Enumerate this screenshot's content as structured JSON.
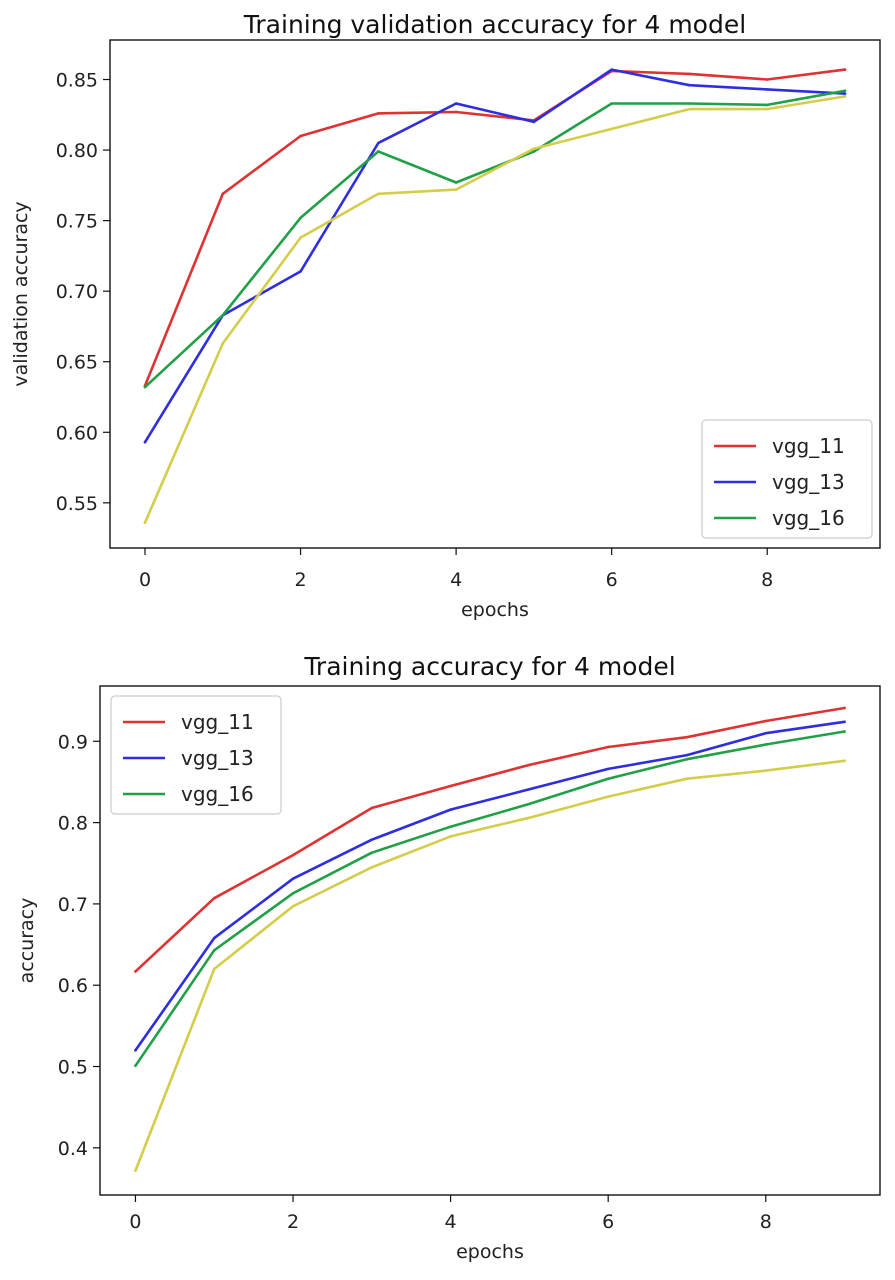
{
  "chart_data": [
    {
      "type": "line",
      "title": "Training validation accuracy for 4 model",
      "xlabel": "epochs",
      "ylabel": "validation accuracy",
      "xlim": [
        -0.45,
        9.45
      ],
      "ylim": [
        0.518,
        0.878
      ],
      "xticks": [
        0,
        2,
        4,
        6,
        8
      ],
      "yticks": [
        0.55,
        0.6,
        0.65,
        0.7,
        0.75,
        0.8,
        0.85
      ],
      "xtick_labels": [
        "0",
        "2",
        "4",
        "6",
        "8"
      ],
      "ytick_labels": [
        "0.55",
        "0.60",
        "0.65",
        "0.70",
        "0.75",
        "0.80",
        "0.85"
      ],
      "legend": "bottom-right",
      "grid": false,
      "x": [
        0,
        1,
        2,
        3,
        4,
        5,
        6,
        7,
        8,
        9
      ],
      "series": [
        {
          "name": "vgg_11",
          "color": "#e03232",
          "values": [
            0.633,
            0.769,
            0.81,
            0.826,
            0.827,
            0.821,
            0.856,
            0.854,
            0.85,
            0.857
          ]
        },
        {
          "name": "vgg_13",
          "color": "#2e2ee0",
          "values": [
            0.593,
            0.683,
            0.714,
            0.805,
            0.833,
            0.82,
            0.857,
            0.846,
            0.843,
            0.84
          ]
        },
        {
          "name": "vgg_16",
          "color": "#21a047",
          "values": [
            0.632,
            0.683,
            0.752,
            0.799,
            0.777,
            0.799,
            0.833,
            0.833,
            0.832,
            0.842
          ]
        },
        {
          "color": "#d4cd4a",
          "values": [
            0.536,
            0.663,
            0.738,
            0.769,
            0.772,
            0.801,
            0.815,
            0.829,
            0.829,
            0.838
          ]
        }
      ]
    },
    {
      "type": "line",
      "title": "Training accuracy for 4 model",
      "xlabel": "epochs",
      "ylabel": "accuracy",
      "xlim": [
        -0.45,
        9.45
      ],
      "ylim": [
        0.342,
        0.968
      ],
      "xticks": [
        0,
        2,
        4,
        6,
        8
      ],
      "yticks": [
        0.4,
        0.5,
        0.6,
        0.7,
        0.8,
        0.9
      ],
      "xtick_labels": [
        "0",
        "2",
        "4",
        "6",
        "8"
      ],
      "ytick_labels": [
        "0.4",
        "0.5",
        "0.6",
        "0.7",
        "0.8",
        "0.9"
      ],
      "legend": "top-left",
      "grid": false,
      "x": [
        0,
        1,
        2,
        3,
        4,
        5,
        6,
        7,
        8,
        9
      ],
      "series": [
        {
          "name": "vgg_11",
          "color": "#e03232",
          "values": [
            0.617,
            0.707,
            0.76,
            0.818,
            0.845,
            0.871,
            0.893,
            0.905,
            0.925,
            0.941
          ]
        },
        {
          "name": "vgg_13",
          "color": "#2e2ee0",
          "values": [
            0.52,
            0.658,
            0.731,
            0.779,
            0.816,
            0.841,
            0.866,
            0.883,
            0.91,
            0.924
          ]
        },
        {
          "name": "vgg_16",
          "color": "#21a047",
          "values": [
            0.501,
            0.643,
            0.713,
            0.763,
            0.795,
            0.823,
            0.854,
            0.878,
            0.896,
            0.912
          ]
        },
        {
          "color": "#d4cd4a",
          "values": [
            0.372,
            0.62,
            0.697,
            0.745,
            0.783,
            0.806,
            0.832,
            0.854,
            0.864,
            0.876
          ]
        }
      ]
    }
  ]
}
